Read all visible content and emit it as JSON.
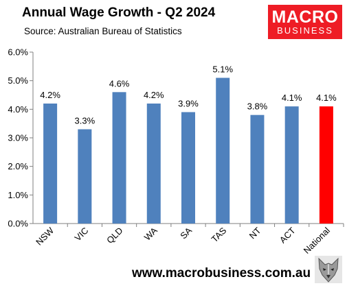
{
  "header": {
    "title": "Annual Wage Growth - Q2 2024",
    "subtitle": "Source: Australian Bureau of Statistics"
  },
  "logo": {
    "top": "MACRO",
    "bottom": "BUSINESS",
    "color": "#ee1c25"
  },
  "footer": {
    "website": "www.macrobusiness.com.au",
    "icon": "wolf-logo-icon"
  },
  "chart_data": {
    "type": "bar",
    "categories": [
      "NSW",
      "VIC",
      "QLD",
      "WA",
      "SA",
      "TAS",
      "NT",
      "ACT",
      "National"
    ],
    "values": [
      4.2,
      3.3,
      4.6,
      4.2,
      3.9,
      5.1,
      3.8,
      4.1,
      4.1
    ],
    "value_labels": [
      "4.2%",
      "3.3%",
      "4.6%",
      "4.2%",
      "3.9%",
      "5.1%",
      "3.8%",
      "4.1%",
      "4.1%"
    ],
    "ylim": [
      0,
      6
    ],
    "y_ticks": [
      0,
      1,
      2,
      3,
      4,
      5,
      6
    ],
    "y_tick_labels": [
      "0.0%",
      "1.0%",
      "2.0%",
      "3.0%",
      "4.0%",
      "5.0%",
      "6.0%"
    ],
    "grid": false,
    "legend": "none",
    "bar_color": "#4f81bd",
    "highlight_color": "#ff0000",
    "highlight_category": "National"
  }
}
